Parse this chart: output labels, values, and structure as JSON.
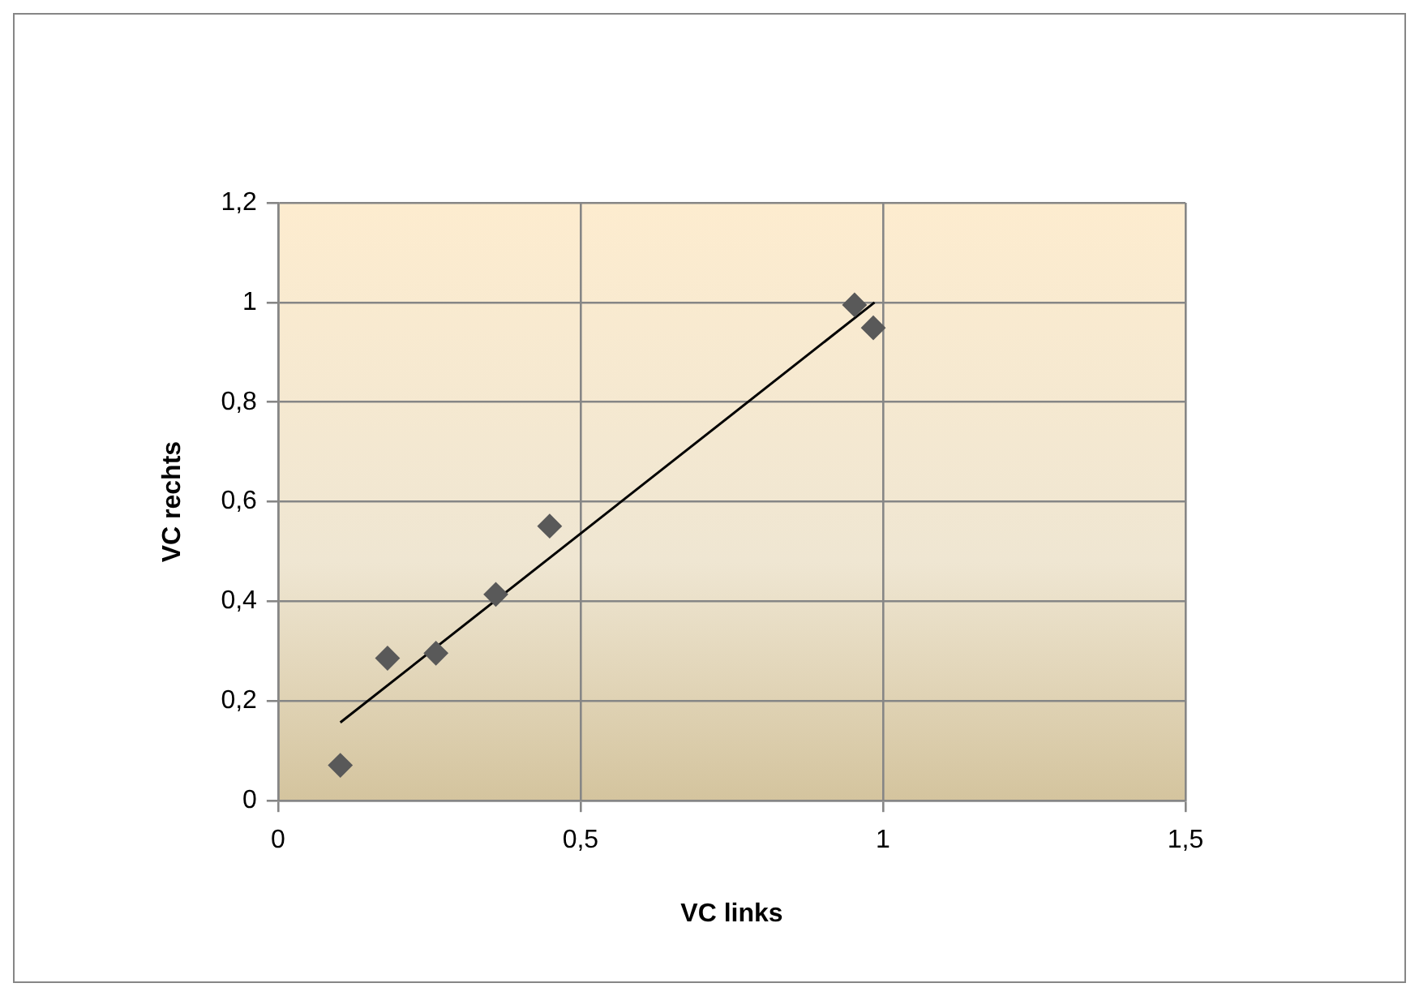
{
  "chart_data": {
    "type": "scatter",
    "xlabel": "VC links",
    "ylabel": "VC rechts",
    "xlim": [
      0,
      1.5
    ],
    "xticks": [
      {
        "value": 0,
        "label": "0"
      },
      {
        "value": 0.5,
        "label": "0,5"
      },
      {
        "value": 1,
        "label": "1"
      },
      {
        "value": 1.5,
        "label": "1,5"
      }
    ],
    "ylim": [
      0,
      1.2
    ],
    "yticks": [
      {
        "value": 0,
        "label": "0"
      },
      {
        "value": 0.2,
        "label": "0,2"
      },
      {
        "value": 0.4,
        "label": "0,4"
      },
      {
        "value": 0.6,
        "label": "0,6"
      },
      {
        "value": 0.8,
        "label": "0,8"
      },
      {
        "value": 1,
        "label": "1"
      },
      {
        "value": 1.2,
        "label": "1,2"
      }
    ],
    "grid": true,
    "legend": false,
    "series": [
      {
        "type": "scatter",
        "marker": "diamond",
        "color": "#595959",
        "x": [
          0.103,
          0.181,
          0.261,
          0.36,
          0.449,
          0.953,
          0.984
        ],
        "values": [
          0.071,
          0.286,
          0.296,
          0.414,
          0.551,
          0.995,
          0.949
        ]
      },
      {
        "type": "line",
        "color": "#000000",
        "x": [
          0.103,
          0.986
        ],
        "values": [
          0.157,
          1.0
        ]
      }
    ]
  }
}
